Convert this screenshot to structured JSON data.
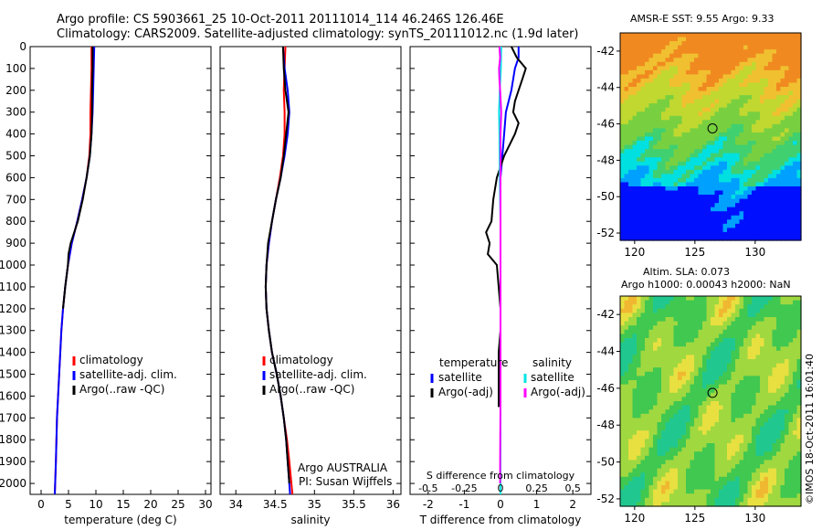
{
  "header": {
    "title_line1": "Argo profile: CS 5903661_25 10-Oct-2011 20111014_114 46.246S 126.46E",
    "title_line2": "Climatology: CARS2009. Satellite-adjusted climatology: synTS_20111012.nc (1.9d later)"
  },
  "maps": {
    "sst_title": "AMSR-E SST: 9.55 Argo: 9.33",
    "sla_title_1": "Altim. SLA: 0.073",
    "sla_title_2": "Argo h1000: 0.00043 h2000: NaN",
    "lat_ticks": [
      "-42",
      "-44",
      "-46",
      "-48",
      "-50",
      "-52"
    ],
    "lon_ticks": [
      "120",
      "125",
      "130"
    ],
    "argo_position": {
      "lon": 126.46,
      "lat": -46.25
    }
  },
  "credit": "©IMOS 18-Oct-2011 16:01:40",
  "chart_data": [
    {
      "type": "line",
      "xlabel": "temperature (deg C)",
      "ylabel": "",
      "xlim": [
        -2,
        31
      ],
      "ylim": [
        2050,
        0
      ],
      "xticks": [
        "0",
        "5",
        "10",
        "15",
        "20",
        "25",
        "30"
      ],
      "yticks": [
        "0",
        "100",
        "200",
        "300",
        "400",
        "500",
        "600",
        "700",
        "800",
        "900",
        "1000",
        "1100",
        "1200",
        "1300",
        "1400",
        "1500",
        "1600",
        "1700",
        "1800",
        "1900",
        "2000"
      ],
      "legend": [
        "climatology",
        "satellite-adj. clim.",
        "Argo(..raw -QC)"
      ],
      "series": [
        {
          "name": "climatology",
          "color": "#ff0000",
          "depth": [
            0,
            100,
            200,
            300,
            400,
            500,
            600,
            700,
            800,
            900,
            1000,
            1100,
            1200,
            1300,
            1400,
            1500,
            1600,
            1700,
            1800,
            1900,
            2050
          ],
          "values": [
            9.2,
            9.2,
            9.1,
            9.0,
            9.0,
            8.8,
            8.3,
            7.5,
            6.6,
            5.6,
            4.9,
            4.4,
            4.0,
            3.7,
            3.5,
            3.3,
            3.1,
            2.9,
            2.8,
            2.7,
            2.5
          ]
        },
        {
          "name": "satellite-adj. clim.",
          "color": "#0000ff",
          "depth": [
            0,
            100,
            200,
            300,
            400,
            500,
            600,
            700,
            800,
            900,
            1000,
            1100,
            1200,
            1300,
            1400,
            1500,
            1600,
            1700,
            1800,
            1900,
            2050
          ],
          "values": [
            9.7,
            9.6,
            9.5,
            9.4,
            9.2,
            8.9,
            8.3,
            7.5,
            6.6,
            5.6,
            4.9,
            4.4,
            4.0,
            3.7,
            3.5,
            3.3,
            3.1,
            2.9,
            2.8,
            2.7,
            2.5
          ]
        },
        {
          "name": "Argo(..raw -QC)",
          "color": "#000000",
          "depth": [
            0,
            100,
            200,
            300,
            400,
            500,
            600,
            700,
            800,
            900,
            950,
            1000,
            1100,
            1200
          ],
          "values": [
            9.4,
            9.4,
            9.3,
            9.3,
            9.2,
            8.9,
            8.3,
            7.6,
            6.7,
            5.4,
            5.0,
            4.9,
            4.4,
            4.0
          ]
        }
      ]
    },
    {
      "type": "line",
      "xlabel": "salinity",
      "ylabel": "",
      "xlim": [
        33.8,
        36.1
      ],
      "ylim": [
        2050,
        0
      ],
      "xticks": [
        "34",
        "34.5",
        "35",
        "35.5",
        "36"
      ],
      "legend": [
        "climatology",
        "satellite-adj. clim.",
        "Argo(..raw -QC)"
      ],
      "annotation": [
        "Argo AUSTRALIA",
        "PI: Susan Wijffels"
      ],
      "series": [
        {
          "name": "climatology",
          "color": "#ff0000",
          "depth": [
            0,
            100,
            200,
            300,
            400,
            500,
            600,
            700,
            800,
            900,
            1000,
            1100,
            1200,
            1300,
            1400,
            1500,
            1600,
            1700,
            1800,
            1900,
            2050
          ],
          "values": [
            34.63,
            34.62,
            34.61,
            34.62,
            34.62,
            34.6,
            34.56,
            34.51,
            34.46,
            34.42,
            34.39,
            34.38,
            34.39,
            34.42,
            34.46,
            34.52,
            34.57,
            34.61,
            34.65,
            34.68,
            34.72
          ]
        },
        {
          "name": "satellite-adj. clim.",
          "color": "#0000ff",
          "depth": [
            0,
            100,
            200,
            300,
            400,
            500,
            600,
            700,
            800,
            900,
            1000,
            1100,
            1200,
            1300,
            1400,
            1500,
            1600,
            1700,
            1800,
            1900,
            2050
          ],
          "values": [
            34.6,
            34.62,
            34.66,
            34.68,
            34.66,
            34.62,
            34.57,
            34.51,
            34.46,
            34.42,
            34.39,
            34.38,
            34.39,
            34.42,
            34.46,
            34.52,
            34.57,
            34.61,
            34.64,
            34.66,
            34.69
          ]
        },
        {
          "name": "Argo(..raw -QC)",
          "color": "#000000",
          "depth": [
            0,
            100,
            200,
            300,
            400,
            500,
            600,
            700,
            800,
            900,
            1000,
            1100,
            1200,
            1300,
            1400,
            1500,
            1600,
            1700,
            1800,
            1900,
            2000
          ],
          "values": [
            34.6,
            34.61,
            34.63,
            34.67,
            34.64,
            34.61,
            34.57,
            34.51,
            34.46,
            34.41,
            34.39,
            34.38,
            34.39,
            34.42,
            34.46,
            34.52,
            34.57,
            34.61,
            34.64,
            34.66,
            34.68
          ]
        }
      ]
    },
    {
      "type": "line",
      "xlabel": "T difference from climatology",
      "ylabel": "",
      "xlim": [
        -2.5,
        2.5
      ],
      "ylim": [
        2050,
        0
      ],
      "xticks": [
        "-2",
        "-1",
        "0",
        "1",
        "2"
      ],
      "top_xlabel": "S difference from climatology",
      "top_xticks": [
        "-0.5",
        "-0.25",
        "0",
        "0.25",
        "0.5"
      ],
      "legend_temperature": [
        "temperature",
        "satellite",
        "Argo(-adj)"
      ],
      "legend_salinity": [
        "salinity",
        "satellite",
        "Argo(-adj)"
      ],
      "series": [
        {
          "name": "satellite",
          "color": "#0000ff",
          "depth": [
            0,
            50,
            100,
            200,
            300,
            400,
            600,
            800,
            1000,
            1200,
            1400,
            1600,
            2050
          ],
          "values": [
            0.5,
            0.5,
            0.4,
            0.3,
            0.15,
            0.1,
            0.0,
            0.0,
            0.0,
            0.0,
            0.0,
            0.0,
            0.0
          ]
        },
        {
          "name": "Argo(-adj)",
          "color": "#000000",
          "depth": [
            0,
            50,
            100,
            150,
            200,
            250,
            300,
            350,
            400,
            500,
            600,
            700,
            800,
            850,
            900,
            950,
            1000,
            1100,
            1200,
            1300,
            1400,
            1500,
            1600,
            1650
          ],
          "values": [
            0.3,
            0.45,
            0.7,
            0.6,
            0.5,
            0.4,
            0.35,
            0.5,
            0.4,
            0.1,
            -0.1,
            -0.2,
            -0.25,
            -0.4,
            -0.3,
            -0.35,
            -0.1,
            -0.05,
            0.0,
            0.0,
            -0.05,
            -0.05,
            -0.05,
            -0.05
          ]
        },
        {
          "name": "satellite",
          "color": "#00e5e5",
          "depth": [
            0,
            100,
            200,
            300,
            400,
            600,
            800,
            1000,
            1200,
            1400,
            1600,
            1800,
            2050
          ],
          "values": [
            0.02,
            0.01,
            -0.02,
            -0.04,
            -0.03,
            -0.02,
            0.0,
            0.0,
            0.0,
            0.0,
            0.0,
            0.0,
            0.0
          ]
        },
        {
          "name": "Argo(-adj)",
          "color": "#ff00ff",
          "depth": [
            0,
            50,
            100,
            150,
            200,
            300,
            400,
            600,
            1000,
            1400,
            1600,
            1900,
            2000
          ],
          "values": [
            -0.03,
            -0.01,
            -0.04,
            -0.03,
            -0.01,
            0.02,
            0.0,
            0.0,
            0.0,
            0.0,
            0.0,
            -0.01,
            -0.01
          ]
        }
      ]
    }
  ]
}
